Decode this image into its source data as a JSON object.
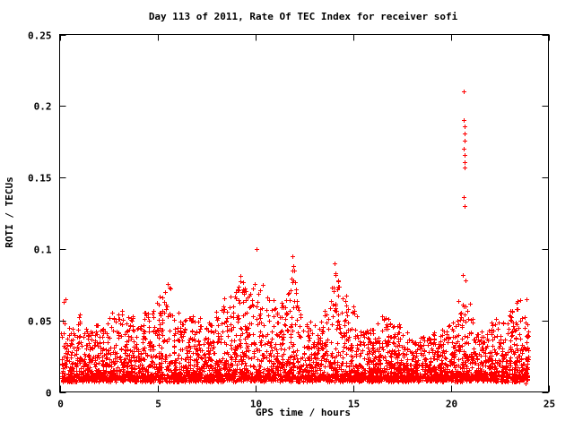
{
  "title": "Day 113 of 2011, Rate Of TEC Index for receiver sofi",
  "chart_data": {
    "type": "scatter",
    "title": "Day 113 of 2011, Rate Of TEC Index for receiver sofi",
    "xlabel": "GPS time / hours",
    "ylabel": "ROTI / TECUs",
    "xlim": [
      0,
      25
    ],
    "ylim": [
      0,
      0.25
    ],
    "xticks": [
      0,
      5,
      10,
      15,
      20,
      25
    ],
    "xtick_labels": [
      "0",
      "5",
      "10",
      "15",
      "20",
      "25"
    ],
    "yticks": [
      0,
      0.05,
      0.1,
      0.15,
      0.2,
      0.25
    ],
    "ytick_labels": [
      "0",
      "0.05",
      "0.1",
      "0.15",
      "0.2",
      "0.25"
    ],
    "grid": false,
    "legend": "none",
    "marker": "plus",
    "marker_color": "#ff0000",
    "x_data_range": [
      0.05,
      23.95
    ],
    "baseline_band": [
      0.009,
      0.035
    ],
    "approx_point_count": 4200,
    "envelope": [
      [
        0,
        0.055
      ],
      [
        0.3,
        0.066
      ],
      [
        0.6,
        0.045
      ],
      [
        1,
        0.055
      ],
      [
        1.5,
        0.042
      ],
      [
        2,
        0.046
      ],
      [
        2.5,
        0.05
      ],
      [
        2.8,
        0.064
      ],
      [
        3.2,
        0.058
      ],
      [
        3.6,
        0.055
      ],
      [
        4,
        0.05
      ],
      [
        4.5,
        0.056
      ],
      [
        5,
        0.065
      ],
      [
        5.5,
        0.075
      ],
      [
        5.9,
        0.07
      ],
      [
        6.3,
        0.052
      ],
      [
        7,
        0.056
      ],
      [
        7.5,
        0.046
      ],
      [
        8,
        0.055
      ],
      [
        8.5,
        0.068
      ],
      [
        9,
        0.074
      ],
      [
        9.3,
        0.08
      ],
      [
        9.7,
        0.068
      ],
      [
        10,
        0.082
      ],
      [
        10.4,
        0.075
      ],
      [
        11,
        0.065
      ],
      [
        11.5,
        0.06
      ],
      [
        12,
        0.092
      ],
      [
        12.4,
        0.046
      ],
      [
        13,
        0.05
      ],
      [
        13.5,
        0.056
      ],
      [
        14,
        0.088
      ],
      [
        14.4,
        0.072
      ],
      [
        15,
        0.064
      ],
      [
        15.5,
        0.046
      ],
      [
        16,
        0.044
      ],
      [
        16.5,
        0.055
      ],
      [
        17,
        0.05
      ],
      [
        17.5,
        0.046
      ],
      [
        18,
        0.04
      ],
      [
        18.5,
        0.04
      ],
      [
        19,
        0.042
      ],
      [
        19.5,
        0.046
      ],
      [
        20,
        0.05
      ],
      [
        20.5,
        0.068
      ],
      [
        21,
        0.056
      ],
      [
        21.5,
        0.044
      ],
      [
        22,
        0.05
      ],
      [
        22.5,
        0.052
      ],
      [
        23,
        0.056
      ],
      [
        23.4,
        0.066
      ],
      [
        23.7,
        0.06
      ],
      [
        23.95,
        0.076
      ]
    ],
    "outliers": [
      [
        0.3,
        0.065
      ],
      [
        5.55,
        0.0755
      ],
      [
        9.25,
        0.081
      ],
      [
        10.05,
        0.1
      ],
      [
        11.9,
        0.095
      ],
      [
        11.95,
        0.088
      ],
      [
        12.0,
        0.085
      ],
      [
        14.05,
        0.09
      ],
      [
        14.1,
        0.082
      ],
      [
        20.6,
        0.082
      ],
      [
        20.65,
        0.21
      ],
      [
        20.68,
        0.19
      ],
      [
        20.7,
        0.186
      ],
      [
        20.7,
        0.181
      ],
      [
        20.72,
        0.176
      ],
      [
        20.68,
        0.17
      ],
      [
        20.7,
        0.166
      ],
      [
        20.72,
        0.161
      ],
      [
        20.7,
        0.157
      ],
      [
        20.68,
        0.136
      ],
      [
        20.72,
        0.13
      ],
      [
        20.75,
        0.078
      ],
      [
        21.0,
        0.062
      ],
      [
        23.85,
        0.006
      ]
    ]
  }
}
